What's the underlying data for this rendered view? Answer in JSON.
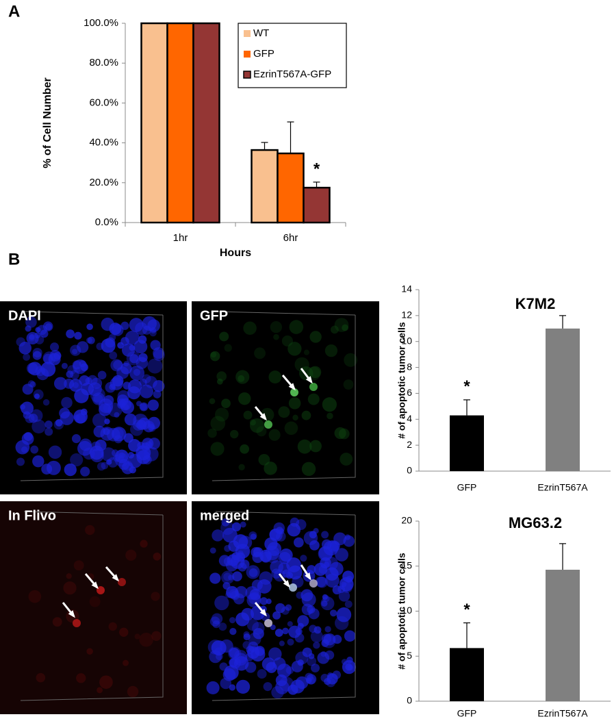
{
  "panel_labels": [
    "A",
    "B"
  ],
  "images": [
    {
      "label": "DAPI"
    },
    {
      "label": "GFP"
    },
    {
      "label": "In Flivo"
    },
    {
      "label": "merged"
    }
  ],
  "chart_data": [
    {
      "type": "bar",
      "ylabel": "% of Cell Number",
      "xlabel": "Hours",
      "categories": [
        "1hr",
        "6hr"
      ],
      "series": [
        {
          "name": "WT",
          "color": "#f9c08f",
          "values": [
            100,
            36.4
          ],
          "errors": [
            null,
            3.8
          ]
        },
        {
          "name": "GFP",
          "color": "#ff6600",
          "values": [
            100,
            34.7
          ],
          "errors": [
            null,
            15.8
          ]
        },
        {
          "name": "EzrinT567A-GFP",
          "color": "#943634",
          "values": [
            100,
            17.5
          ],
          "errors": [
            null,
            2.8
          ]
        }
      ],
      "ylim": [
        0,
        100
      ],
      "yticks": [
        {
          "value": 0,
          "label": "0.0%"
        },
        {
          "value": 20,
          "label": "20.0%"
        },
        {
          "value": 40,
          "label": "40.0%"
        },
        {
          "value": 60,
          "label": "60.0%"
        },
        {
          "value": 80,
          "label": "80.0%"
        },
        {
          "value": 100,
          "label": "100.0%"
        }
      ],
      "legend": "upper right",
      "annotations": [
        "*"
      ]
    },
    {
      "type": "bar",
      "title": "K7M2",
      "ylabel": "# of apoptotic tumor cells",
      "categories": [
        "GFP",
        "EzrinT567A"
      ],
      "values": [
        4.3,
        11
      ],
      "errors": [
        1.2,
        1
      ],
      "colors": [
        "#000000",
        "#808080"
      ],
      "ylim": [
        0,
        14
      ],
      "yticks": [
        0,
        2,
        4,
        6,
        8,
        10,
        12,
        14
      ],
      "annotations": [
        "*"
      ]
    },
    {
      "type": "bar",
      "title": "MG63.2",
      "ylabel": "# of apoptotic tumor cells",
      "categories": [
        "GFP",
        "EzrinT567A"
      ],
      "values": [
        5.9,
        14.6
      ],
      "errors": [
        2.8,
        2.9
      ],
      "colors": [
        "#000000",
        "#808080"
      ],
      "ylim": [
        0,
        20
      ],
      "yticks": [
        0,
        5,
        10,
        15,
        20
      ],
      "annotations": [
        "*"
      ]
    }
  ]
}
